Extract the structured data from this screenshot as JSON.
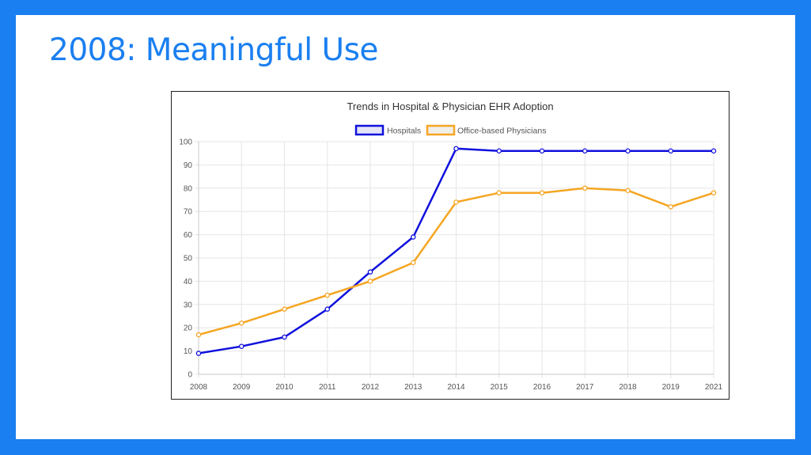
{
  "slide": {
    "title": "2008: Meaningful Use"
  },
  "colors": {
    "background": "#1a7ff0",
    "title": "#1a7ff0",
    "hospitals": "#1010dd",
    "physicians": "#f5a623"
  },
  "chart_data": {
    "type": "line",
    "title": "Trends in Hospital & Physician EHR Adoption",
    "xlabel": "",
    "ylabel": "",
    "x": [
      "2008",
      "2009",
      "2010",
      "2011",
      "2012",
      "2013",
      "2014",
      "2015",
      "2016",
      "2017",
      "2018",
      "2019",
      "2021"
    ],
    "ylim": [
      0,
      100
    ],
    "yticks": [
      0,
      10,
      20,
      30,
      40,
      50,
      60,
      70,
      80,
      90,
      100
    ],
    "grid": true,
    "legend_position": "top-center",
    "series": [
      {
        "name": "Hospitals",
        "color": "#1010dd",
        "values": [
          9,
          12,
          16,
          28,
          44,
          59,
          97,
          96,
          96,
          96,
          96,
          96,
          96
        ]
      },
      {
        "name": "Office-based Physicians",
        "color": "#f5a623",
        "values": [
          17,
          22,
          28,
          34,
          40,
          48,
          74,
          78,
          78,
          80,
          79,
          72,
          78
        ]
      }
    ]
  }
}
